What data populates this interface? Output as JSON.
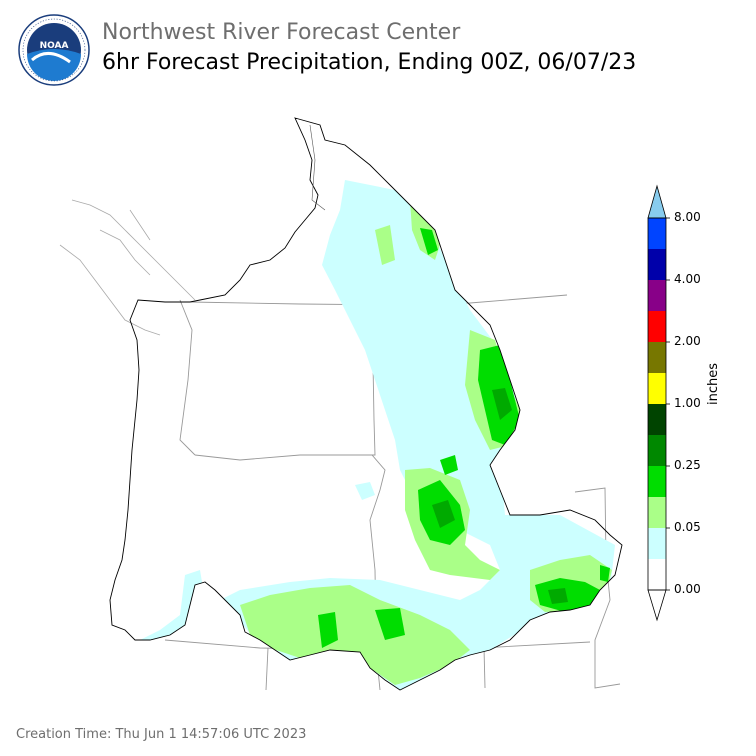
{
  "header": {
    "org": "Northwest River Forecast Center",
    "product": "6hr Forecast Precipitation, Ending 00Z, 06/07/23"
  },
  "logo": {
    "center_text": "NOAA",
    "ring_text": "NATIONAL OCEANIC AND ATMOSPHERIC ADMINISTRATION · U.S. DEPARTMENT OF COMMERCE"
  },
  "colorbar": {
    "unit": "inches",
    "tick_labels": [
      "0.00",
      "0.05",
      "0.25",
      "1.00",
      "2.00",
      "4.00",
      "8.00"
    ],
    "colors": [
      "#ffffff",
      "#ccffff",
      "#aaff88",
      "#00dd00",
      "#008800",
      "#004400",
      "#ffff00",
      "#777700",
      "#ff0000",
      "#880088",
      "#0000aa",
      "#0044ff",
      "#88ccee"
    ]
  },
  "footer": {
    "creation_time": "Creation Time: Thu Jun 1 14:57:06 UTC 2023"
  }
}
